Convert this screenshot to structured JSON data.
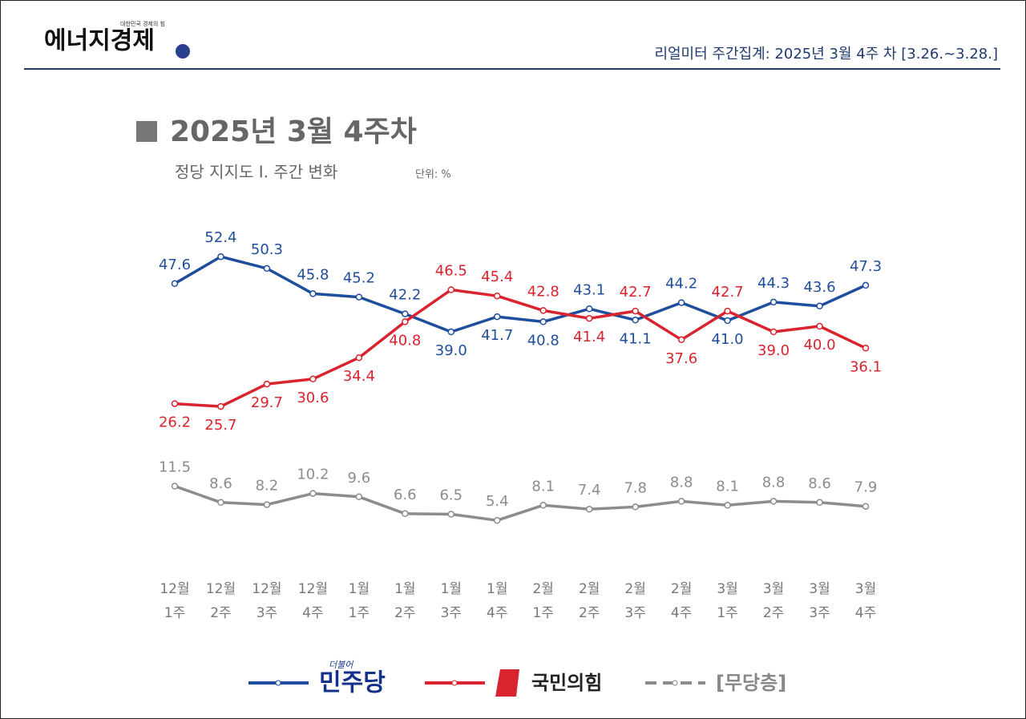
{
  "header": {
    "logo": "에너지경제",
    "tagline": "대한민국 경제의 힘",
    "source": "리얼미터 주간집계: 2025년 3월 4주 차 [3.26.~3.28.]"
  },
  "chart_data": {
    "type": "line",
    "title": "2025년 3월 4주차",
    "subtitle": "정당 지지도 Ⅰ. 주간 변화",
    "unit": "단위: %",
    "categories": [
      "12월 1주",
      "12월 2주",
      "12월 3주",
      "12월 4주",
      "1월 1주",
      "1월 2주",
      "1월 3주",
      "1월 4주",
      "2월 1주",
      "2월 2주",
      "2월 3주",
      "2월 4주",
      "3월 1주",
      "3월 2주",
      "3월 3주",
      "3월 4주"
    ],
    "ylim": [
      0,
      60
    ],
    "legend_prefix": "더불어",
    "series": [
      {
        "name": "민주당",
        "color": "#1f4e9c",
        "values": [
          47.6,
          52.4,
          50.3,
          45.8,
          45.2,
          42.2,
          39.0,
          41.7,
          40.8,
          43.1,
          41.1,
          44.2,
          41.0,
          44.3,
          43.6,
          47.3
        ],
        "value_labels": [
          "47.6",
          "52.4",
          "50.3",
          "45.8",
          "45.2",
          "42.2",
          "39.0",
          "41.7",
          "40.8",
          "43.1",
          "41.1",
          "44.2",
          "41.0",
          "44.3",
          "43.6",
          "47.3"
        ]
      },
      {
        "name": "국민의힘",
        "color": "#d9232e",
        "values": [
          26.2,
          25.7,
          29.7,
          30.6,
          34.4,
          40.8,
          46.5,
          45.4,
          42.8,
          41.4,
          42.7,
          37.6,
          42.7,
          39.0,
          40.0,
          36.1
        ],
        "value_labels": [
          "26.2",
          "25.7",
          "29.7",
          "30.6",
          "34.4",
          "40.8",
          "46.5",
          "45.4",
          "42.8",
          "41.4",
          "42.7",
          "37.6",
          "42.7",
          "39.0",
          "40.0",
          "36.1"
        ]
      },
      {
        "name": "[무당층]",
        "color": "#8c8c8c",
        "values": [
          11.5,
          8.6,
          8.2,
          10.2,
          9.6,
          6.6,
          6.5,
          5.4,
          8.1,
          7.4,
          7.8,
          8.8,
          8.1,
          8.8,
          8.6,
          7.9
        ],
        "value_labels": [
          "11.5",
          "8.6",
          "8.2",
          "10.2",
          "9.6",
          "6.6",
          "6.5",
          "5.4",
          "8.1",
          "7.4",
          "7.8",
          "8.8",
          "8.1",
          "8.8",
          "8.6",
          "7.9"
        ]
      }
    ]
  }
}
